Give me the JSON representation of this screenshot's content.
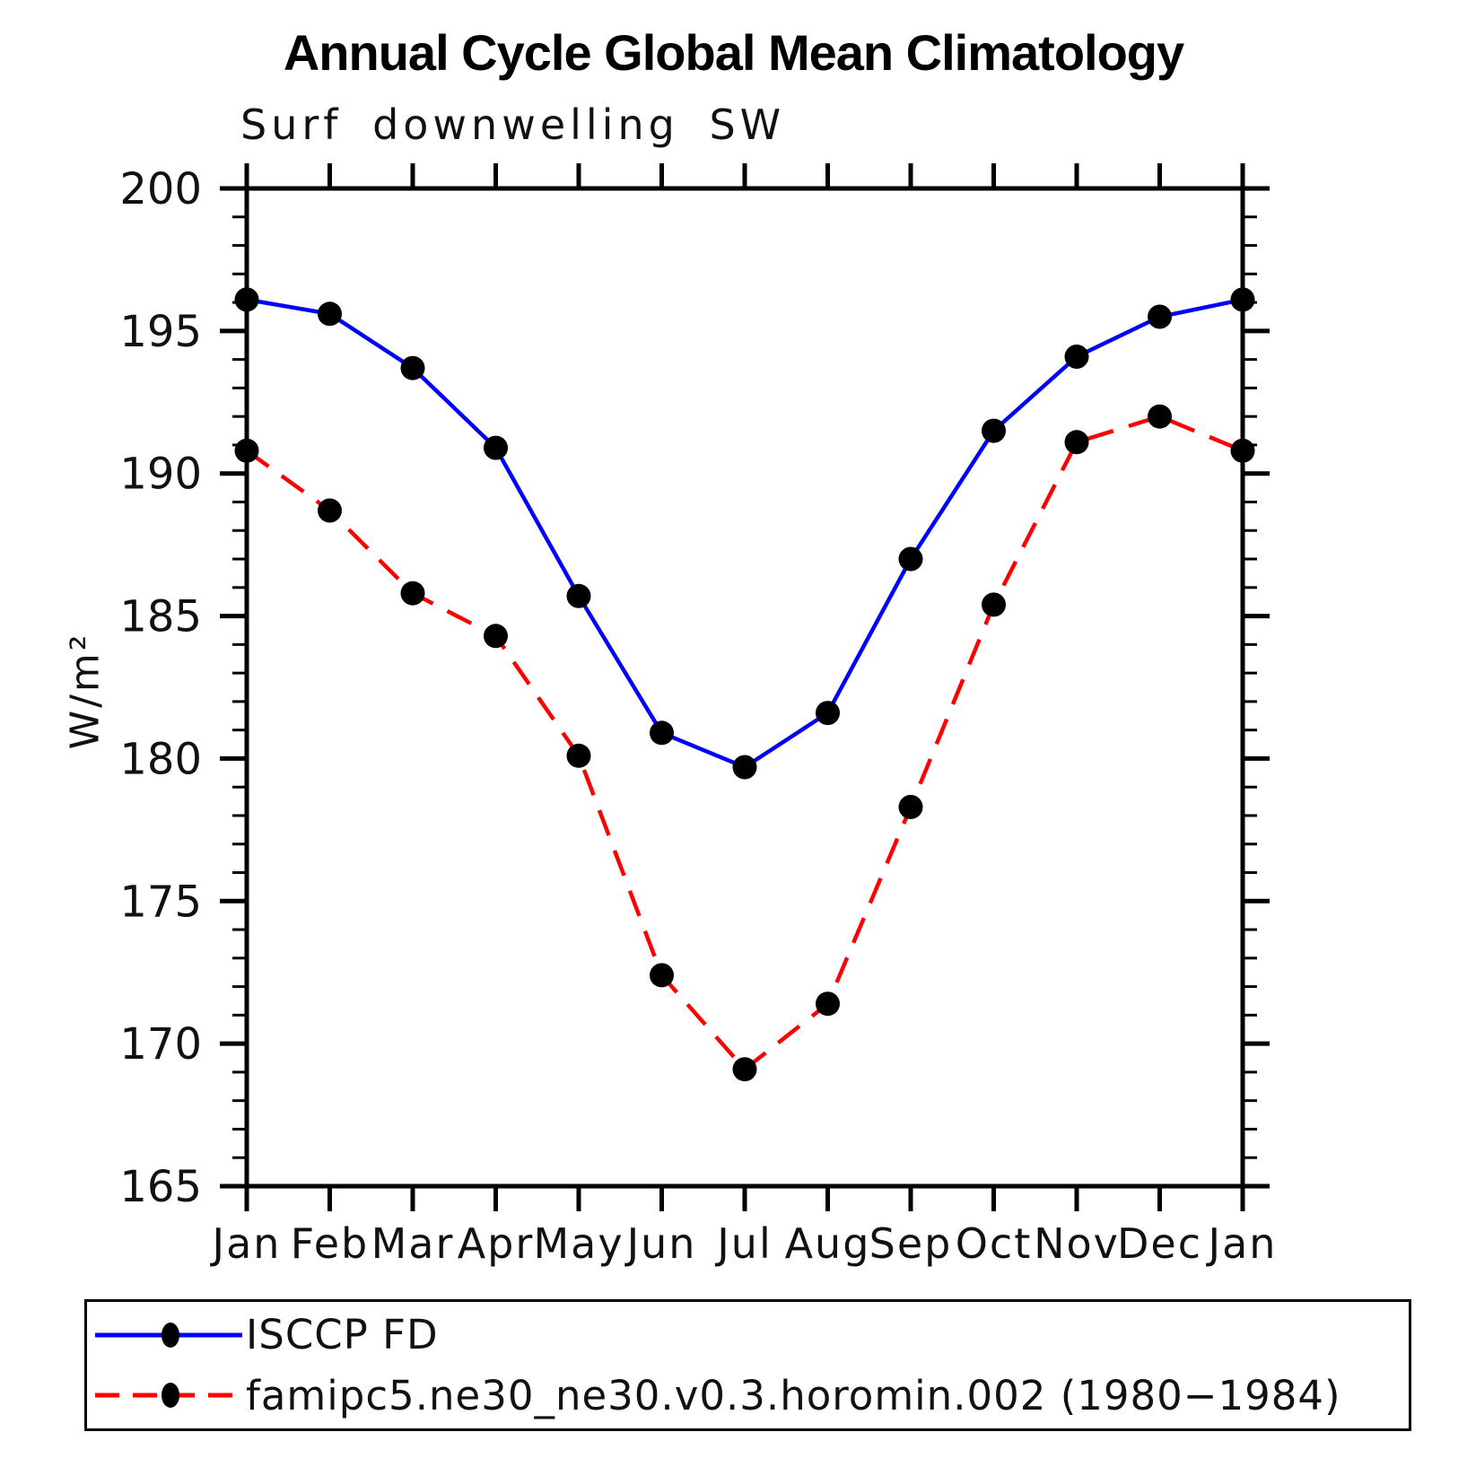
{
  "chart_data": {
    "type": "line",
    "title": "Annual Cycle Global Mean Climatology",
    "subtitle": "Surf downwelling SW",
    "ylabel": "W/m²",
    "categories": [
      "Jan",
      "Feb",
      "Mar",
      "Apr",
      "May",
      "Jun",
      "Jul",
      "Aug",
      "Sep",
      "Oct",
      "Nov",
      "Dec",
      "Jan"
    ],
    "ylim": [
      165,
      200
    ],
    "yticks_major": [
      165,
      170,
      175,
      180,
      185,
      190,
      195,
      200
    ],
    "ytick_minor_step": 1,
    "grid": "off",
    "legend_position": "bottom",
    "axis_color": "#000000",
    "marker_color": "#000000",
    "series": [
      {
        "name": "ISCCP FD",
        "color": "#0000ff",
        "style": "solid",
        "marker": "filled-circle",
        "values": [
          196.1,
          195.6,
          193.7,
          190.9,
          185.7,
          180.9,
          179.7,
          181.6,
          187.0,
          191.5,
          194.1,
          195.5,
          196.1
        ]
      },
      {
        "name": "famipc5.ne30_ne30.v0.3.horomin.002 (1980−1984)",
        "color": "#ff0000",
        "style": "dashed",
        "marker": "filled-circle",
        "values": [
          190.8,
          188.7,
          185.8,
          184.3,
          180.1,
          172.4,
          169.1,
          171.4,
          178.3,
          185.4,
          191.1,
          192.0,
          190.8
        ]
      }
    ]
  }
}
